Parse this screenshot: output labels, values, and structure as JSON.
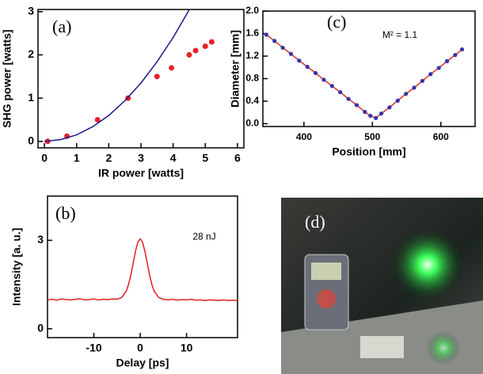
{
  "chart_data": [
    {
      "type": "scatter",
      "xlabel": "IR power [watts]",
      "ylabel": "SHG power [watts]",
      "panel": "(a)",
      "xlim": [
        -0.2,
        6.2
      ],
      "ylim": [
        -0.15,
        3.05
      ],
      "xticks": [
        0,
        1,
        2,
        3,
        4,
        5,
        6
      ],
      "yticks": [
        0,
        1,
        2,
        3
      ],
      "series": [
        {
          "style": "markers",
          "color": "#e8202a",
          "x": [
            0.1,
            0.7,
            1.65,
            2.6,
            3.5,
            3.95,
            4.5,
            4.7,
            5.0,
            5.2
          ],
          "values": [
            0,
            0.12,
            0.5,
            1.0,
            1.5,
            1.7,
            2.0,
            2.1,
            2.2,
            2.3
          ]
        },
        {
          "style": "line",
          "color": "#1a1a8c",
          "x": [
            0,
            0.5,
            1,
            1.5,
            2,
            2.5,
            3,
            3.5,
            4,
            4.5
          ],
          "values": [
            0,
            0.04,
            0.15,
            0.34,
            0.6,
            0.94,
            1.35,
            1.84,
            2.4,
            3.04
          ]
        }
      ]
    },
    {
      "type": "line",
      "xlabel": "Delay [ps]",
      "ylabel": "Intensity [a. u.]",
      "panel": "(b)",
      "annotation": "28 nJ",
      "xlim": [
        -20,
        21
      ],
      "ylim": [
        -0.3,
        4.5
      ],
      "xticks": [
        -10,
        0,
        10
      ],
      "yticks": [
        0,
        3
      ],
      "series": [
        {
          "style": "line",
          "color": "#e0201c",
          "x": [
            -20,
            -19,
            -18,
            -17,
            -16,
            -15,
            -14,
            -13,
            -12,
            -11,
            -10,
            -9,
            -8,
            -7,
            -6,
            -5,
            -4,
            -3,
            -2.5,
            -2,
            -1.5,
            -1,
            -0.5,
            0,
            0.5,
            1,
            1.5,
            2,
            2.5,
            3,
            4,
            5,
            6,
            7,
            8,
            9,
            10,
            11,
            12,
            13,
            14,
            15,
            16,
            17,
            18,
            19,
            20,
            21
          ],
          "values": [
            0.98,
            1.0,
            0.97,
            1.01,
            0.99,
            0.98,
            1.0,
            1.02,
            0.98,
            0.99,
            1.01,
            0.98,
            1.0,
            0.99,
            1.01,
            1.0,
            1.06,
            1.28,
            1.51,
            1.84,
            2.24,
            2.64,
            2.94,
            3.05,
            2.94,
            2.64,
            2.24,
            1.84,
            1.51,
            1.28,
            1.06,
            1.0,
            0.98,
            1.0,
            0.97,
            0.99,
            0.98,
            1.0,
            0.97,
            0.98,
            0.96,
            0.98,
            0.97,
            0.96,
            0.98,
            0.96,
            0.97,
            0.96
          ]
        }
      ]
    },
    {
      "type": "line",
      "xlabel": "Position [mm]",
      "ylabel": "Diameter [mm]",
      "panel": "(c)",
      "annotation": "M² = 1.1",
      "xlim": [
        340,
        650
      ],
      "ylim": [
        -0.05,
        2.0
      ],
      "xticks": [
        400,
        500,
        600
      ],
      "yticks": [
        {
          "value": 0,
          "label": "0.0"
        },
        0.4,
        0.8,
        1.2,
        1.6,
        {
          "value": 2,
          "label": "2.0"
        }
      ],
      "series": [
        {
          "style": "line+markers",
          "color": "#d83030",
          "marker_color": "#3434a8",
          "x": [
            345,
            357,
            369,
            381,
            393,
            405,
            417,
            429,
            441,
            453,
            465,
            477,
            489,
            497,
            505,
            513,
            525,
            537,
            549,
            561,
            573,
            585,
            597,
            609,
            621,
            631
          ],
          "values": [
            1.58,
            1.47,
            1.35,
            1.24,
            1.12,
            1.01,
            0.9,
            0.78,
            0.67,
            0.56,
            0.44,
            0.33,
            0.21,
            0.14,
            0.1,
            0.18,
            0.29,
            0.41,
            0.53,
            0.64,
            0.76,
            0.88,
            0.99,
            1.11,
            1.22,
            1.32
          ]
        }
      ]
    }
  ],
  "photo": {
    "label": "(d)"
  }
}
